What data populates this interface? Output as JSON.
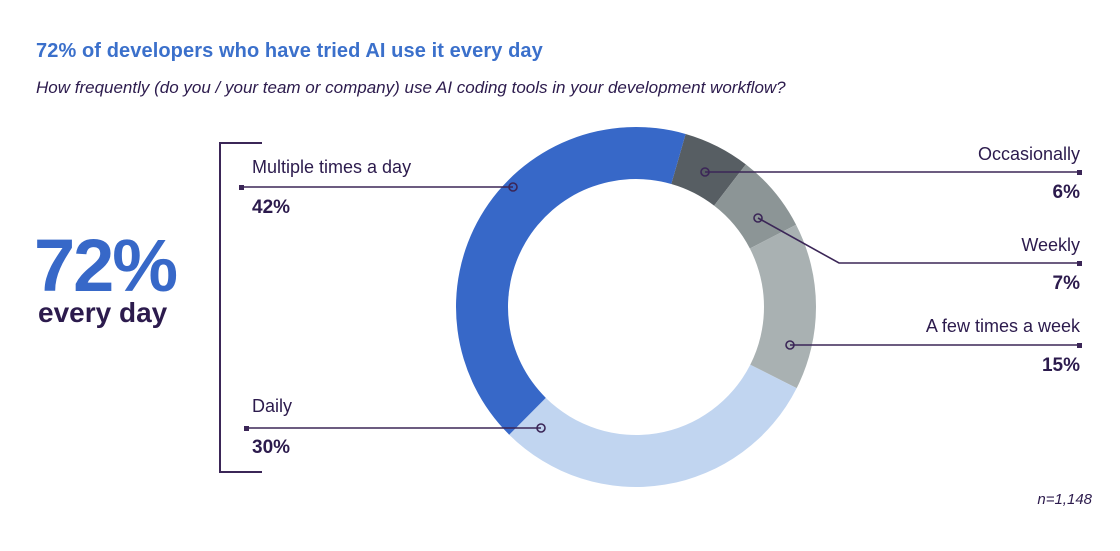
{
  "header": {
    "title": "72% of developers who have tried AI use it every day",
    "subtitle": "How frequently (do you / your team or company) use AI coding tools in your development workflow?"
  },
  "colors": {
    "title_blue": "#3B70CB",
    "text_dark_purple": "#2C1B4D",
    "leader_line": "#3B2657",
    "hero_blue": "#3768C8",
    "background": "#ffffff"
  },
  "chart_data": {
    "type": "donut",
    "title": "72% of developers who have tried AI use it every day",
    "question": "How frequently (do you / your team or company) use AI coding tools in your development workflow?",
    "unit": "%",
    "highlight": {
      "value": "72%",
      "label": "every day"
    },
    "annotation": "n=1,148",
    "segments": [
      {
        "label": "Multiple times a day",
        "value": 42,
        "display": "42%",
        "color": "#3768C8",
        "side": "left"
      },
      {
        "label": "Daily",
        "value": 30,
        "display": "30%",
        "color": "#C1D5F0",
        "side": "left"
      },
      {
        "label": "A few times a week",
        "value": 15,
        "display": "15%",
        "color": "#A9B1B2",
        "side": "right"
      },
      {
        "label": "Weekly",
        "value": 7,
        "display": "7%",
        "color": "#8C9596",
        "side": "right"
      },
      {
        "label": "Occasionally",
        "value": 6,
        "display": "6%",
        "color": "#575E63",
        "side": "right"
      }
    ],
    "layout": {
      "start_angle_deg": 16,
      "direction": "clockwise",
      "clockwise_from_top_order": [
        "Occasionally",
        "Weekly",
        "A few times a week",
        "Daily",
        "Multiple times a day"
      ],
      "inner_radius_ratio": 0.71,
      "legend": "callout-labels",
      "grid": false
    }
  }
}
